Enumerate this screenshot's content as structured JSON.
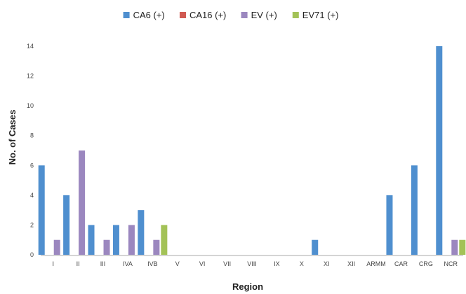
{
  "chart_data": {
    "type": "bar",
    "title": "",
    "xlabel": "Region",
    "ylabel": "No. of Cases",
    "ylim": [
      0,
      14
    ],
    "yticks": [
      0,
      2,
      4,
      6,
      8,
      10,
      12,
      14
    ],
    "grid": false,
    "legend_position": "top-center",
    "categories": [
      "I",
      "II",
      "III",
      "IVA",
      "IVB",
      "V",
      "VI",
      "VII",
      "VIII",
      "IX",
      "X",
      "XI",
      "XII",
      "ARMM",
      "CAR",
      "CRG",
      "NCR"
    ],
    "series": [
      {
        "name": "CA6 (+)",
        "color": "#4f8fcf",
        "values": [
          6,
          4,
          2,
          2,
          3,
          0,
          0,
          0,
          0,
          0,
          0,
          1,
          0,
          0,
          4,
          6,
          14
        ]
      },
      {
        "name": "CA16 (+)",
        "color": "#d05a52",
        "values": [
          0,
          0,
          0,
          0,
          0,
          0,
          0,
          0,
          0,
          0,
          0,
          0,
          0,
          0,
          0,
          0,
          0
        ]
      },
      {
        "name": "EV (+)",
        "color": "#9b87bf",
        "values": [
          1,
          7,
          1,
          2,
          1,
          0,
          0,
          0,
          0,
          0,
          0,
          0,
          0,
          0,
          0,
          0,
          1
        ]
      },
      {
        "name": "EV71 (+)",
        "color": "#a3c257",
        "values": [
          0,
          0,
          0,
          0,
          2,
          0,
          0,
          0,
          0,
          0,
          0,
          0,
          0,
          0,
          0,
          0,
          1
        ]
      }
    ]
  }
}
